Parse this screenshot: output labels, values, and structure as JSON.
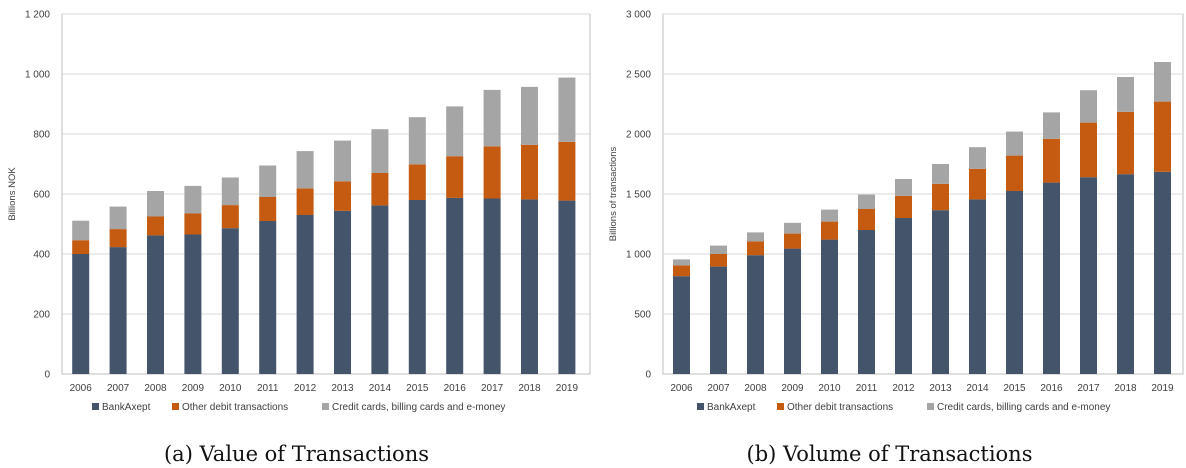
{
  "colors": {
    "BankAxept": "#44546a",
    "Other debit transactions": "#c55a11",
    "Credit cards, billing cards and e-money": "#a5a5a5",
    "grid": "#d9d9d9",
    "axis": "#bfbfbf"
  },
  "captions": {
    "a": "(a) Value of Transactions",
    "b": "(b) Volume of Transactions"
  },
  "chart_data": [
    {
      "type": "bar",
      "stacked": true,
      "ylabel": "Billions NOK",
      "ylim": [
        0,
        1200
      ],
      "yticks": [
        0,
        200,
        400,
        600,
        800,
        1000,
        1200
      ],
      "ytick_labels": [
        "0",
        "200",
        "400",
        "600",
        "800",
        "1 000",
        "1 200"
      ],
      "grid": true,
      "legend": "bottom",
      "categories": [
        "2006",
        "2007",
        "2008",
        "2009",
        "2010",
        "2011",
        "2012",
        "2013",
        "2014",
        "2015",
        "2016",
        "2017",
        "2018",
        "2019"
      ],
      "series": [
        {
          "name": "BankAxept",
          "values": [
            400,
            423,
            462,
            465,
            486,
            510,
            530,
            544,
            562,
            580,
            587,
            585,
            582,
            578
          ]
        },
        {
          "name": "Other debit transactions",
          "values": [
            46,
            60,
            63,
            70,
            77,
            80,
            89,
            98,
            108,
            119,
            139,
            174,
            182,
            196
          ]
        },
        {
          "name": "Credit cards, billing cards and e-money",
          "values": [
            65,
            75,
            85,
            92,
            92,
            105,
            124,
            136,
            146,
            157,
            166,
            188,
            193,
            214
          ]
        }
      ]
    },
    {
      "type": "bar",
      "stacked": true,
      "ylabel": "Billions of transactions",
      "ylim": [
        0,
        3000
      ],
      "yticks": [
        0,
        500,
        1000,
        1500,
        2000,
        2500,
        3000
      ],
      "ytick_labels": [
        "0",
        "500",
        "1 000",
        "1 500",
        "2 000",
        "2 500",
        "3 000"
      ],
      "grid": true,
      "legend": "bottom",
      "categories": [
        "2006",
        "2007",
        "2008",
        "2009",
        "2010",
        "2011",
        "2012",
        "2013",
        "2014",
        "2015",
        "2016",
        "2017",
        "2018",
        "2019"
      ],
      "series": [
        {
          "name": "BankAxept",
          "values": [
            815,
            895,
            990,
            1045,
            1120,
            1200,
            1300,
            1365,
            1455,
            1525,
            1595,
            1640,
            1665,
            1685
          ]
        },
        {
          "name": "Other debit transactions",
          "values": [
            90,
            105,
            115,
            125,
            150,
            175,
            185,
            220,
            255,
            295,
            365,
            455,
            520,
            585
          ]
        },
        {
          "name": "Credit cards, billing cards and e-money",
          "values": [
            50,
            70,
            75,
            90,
            100,
            120,
            140,
            165,
            180,
            200,
            220,
            270,
            290,
            330
          ]
        }
      ]
    }
  ]
}
